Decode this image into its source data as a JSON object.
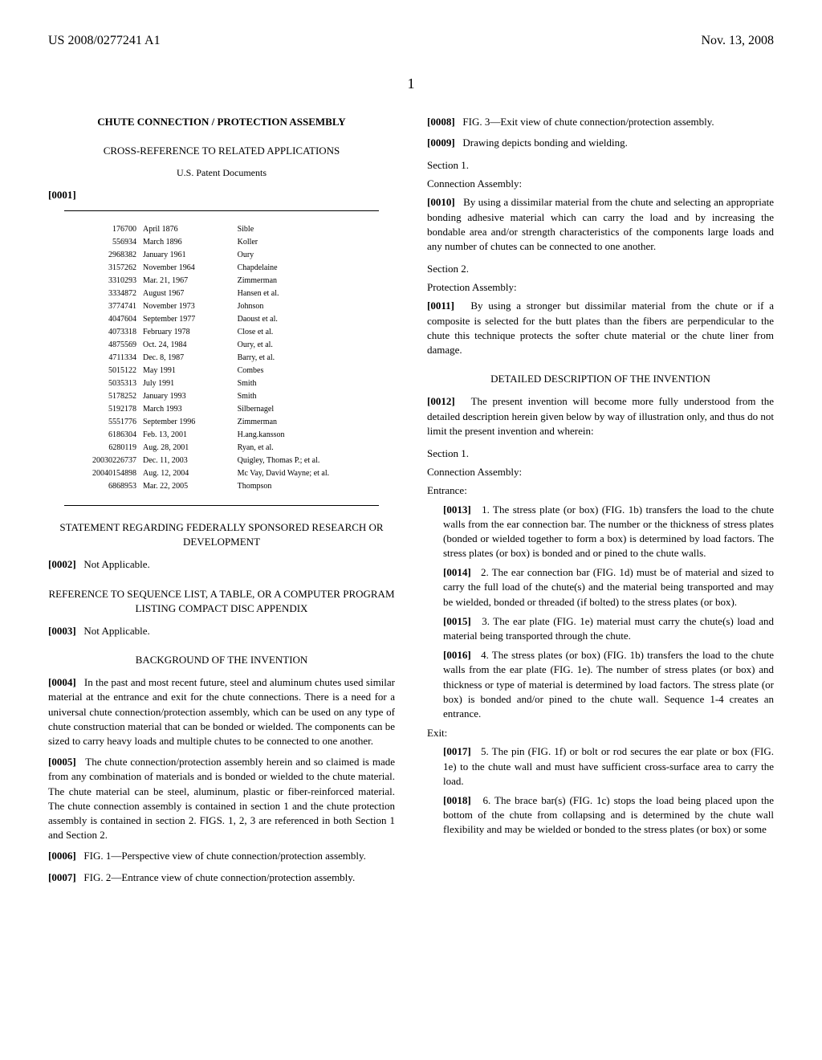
{
  "header": {
    "left": "US 2008/0277241 A1",
    "right": "Nov. 13, 2008"
  },
  "page_number": "1",
  "title": "CHUTE CONNECTION / PROTECTION ASSEMBLY",
  "cross_ref_heading": "CROSS-REFERENCE TO RELATED APPLICATIONS",
  "us_patent_docs": "U.S. Patent Documents",
  "para_0001": "[0001]",
  "patent_table": {
    "rows": [
      [
        "176700",
        "April 1876",
        "Sible"
      ],
      [
        "556934",
        "March 1896",
        "Koller"
      ],
      [
        "2968382",
        "January 1961",
        "Oury"
      ],
      [
        "3157262",
        "November 1964",
        "Chapdelaine"
      ],
      [
        "3310293",
        "Mar. 21, 1967",
        "Zimmerman"
      ],
      [
        "3334872",
        "August 1967",
        "Hansen et al."
      ],
      [
        "3774741",
        "November 1973",
        "Johnson"
      ],
      [
        "4047604",
        "September 1977",
        "Daoust et al."
      ],
      [
        "4073318",
        "February 1978",
        "Close et al."
      ],
      [
        "4875569",
        "Oct. 24, 1984",
        "Oury, et al."
      ],
      [
        "4711334",
        "Dec. 8, 1987",
        "Barry, et al."
      ],
      [
        "5015122",
        "May 1991",
        "Combes"
      ],
      [
        "5035313",
        "July 1991",
        "Smith"
      ],
      [
        "5178252",
        "January 1993",
        "Smith"
      ],
      [
        "5192178",
        "March 1993",
        "Silbernagel"
      ],
      [
        "5551776",
        "September 1996",
        "Zimmerman"
      ],
      [
        "6186304",
        "Feb. 13, 2001",
        "H.ang.kansson"
      ],
      [
        "6280119",
        "Aug. 28, 2001",
        "Ryan, et al."
      ],
      [
        "20030226737",
        "Dec. 11, 2003",
        "Quigley, Thomas P.; et al."
      ],
      [
        "20040154898",
        "Aug. 12, 2004",
        "Mc Vay, David Wayne; et al."
      ],
      [
        "6868953",
        "Mar. 22, 2005",
        "Thompson"
      ]
    ]
  },
  "federal_heading": "STATEMENT REGARDING FEDERALLY SPONSORED RESEARCH OR DEVELOPMENT",
  "para_0002": "[0002]",
  "not_applicable": "Not Applicable.",
  "sequence_heading": "REFERENCE TO SEQUENCE LIST, A TABLE, OR A COMPUTER PROGRAM LISTING COMPACT DISC APPENDIX",
  "para_0003": "[0003]",
  "background_heading": "BACKGROUND OF THE INVENTION",
  "para_0004": "[0004]",
  "para_0004_text": "In the past and most recent future, steel and aluminum chutes used similar material at the entrance and exit for the chute connections. There is a need for a universal chute connection/protection assembly, which can be used on any type of chute construction material that can be bonded or wielded. The components can be sized to carry heavy loads and multiple chutes to be connected to one another.",
  "para_0005": "[0005]",
  "para_0005_text": "The chute connection/protection assembly herein and so claimed is made from any combination of materials and is bonded or wielded to the chute material. The chute material can be steel, aluminum, plastic or fiber-reinforced material. The chute connection assembly is contained in section 1 and the chute protection assembly is contained in section 2. FIGS. 1, 2, 3 are referenced in both Section 1 and Section 2.",
  "para_0006": "[0006]",
  "para_0006_text": "FIG. 1—Perspective view of chute connection/protection assembly.",
  "para_0007": "[0007]",
  "para_0007_text": "FIG. 2—Entrance view of chute connection/protection assembly.",
  "para_0008": "[0008]",
  "para_0008_text": "FIG. 3—Exit view of chute connection/protection assembly.",
  "para_0009": "[0009]",
  "para_0009_text": "Drawing depicts bonding and wielding.",
  "section1_label": "Section 1.",
  "connection_assembly": "Connection Assembly:",
  "para_0010": "[0010]",
  "para_0010_text": "By using a dissimilar material from the chute and selecting an appropriate bonding adhesive material which can carry the load and by increasing the bondable area and/or strength characteristics of the components large loads and any number of chutes can be connected to one another.",
  "section2_label": "Section 2.",
  "protection_assembly": "Protection Assembly:",
  "para_0011": "[0011]",
  "para_0011_text": "By using a stronger but dissimilar material from the chute or if a composite is selected for the butt plates than the fibers are perpendicular to the chute this technique protects the softer chute material or the chute liner from damage.",
  "detailed_heading": "DETAILED DESCRIPTION OF THE INVENTION",
  "para_0012": "[0012]",
  "para_0012_text": "The present invention will become more fully understood from the detailed description herein given below by way of illustration only, and thus do not limit the present invention and wherein:",
  "entrance_label": "Entrance:",
  "para_0013": "[0013]",
  "para_0013_text": "1. The stress plate (or box) (FIG. 1b) transfers the load to the chute walls from the ear connection bar. The number or the thickness of stress plates (bonded or wielded together to form a box) is determined by load factors. The stress plates (or box) is bonded and or pined to the chute walls.",
  "para_0014": "[0014]",
  "para_0014_text": "2. The ear connection bar (FIG. 1d) must be of material and sized to carry the full load of the chute(s) and the material being transported and may be wielded, bonded or threaded (if bolted) to the stress plates (or box).",
  "para_0015": "[0015]",
  "para_0015_text": "3. The ear plate (FIG. 1e) material must carry the chute(s) load and material being transported through the chute.",
  "para_0016": "[0016]",
  "para_0016_text": "4. The stress plates (or box) (FIG. 1b) transfers the load to the chute walls from the ear plate (FIG. 1e). The number of stress plates (or box) and thickness or type of material is determined by load factors. The stress plate (or box) is bonded and/or pined to the chute wall. Sequence 1-4 creates an entrance.",
  "exit_label": "Exit:",
  "para_0017": "[0017]",
  "para_0017_text": "5. The pin (FIG. 1f) or bolt or rod secures the ear plate or box (FIG. 1e) to the chute wall and must have sufficient cross-surface area to carry the load.",
  "para_0018": "[0018]",
  "para_0018_text": "6. The brace bar(s) (FIG. 1c) stops the load being placed upon the bottom of the chute from collapsing and is determined by the chute wall flexibility and may be wielded or bonded to the stress plates (or box) or some"
}
